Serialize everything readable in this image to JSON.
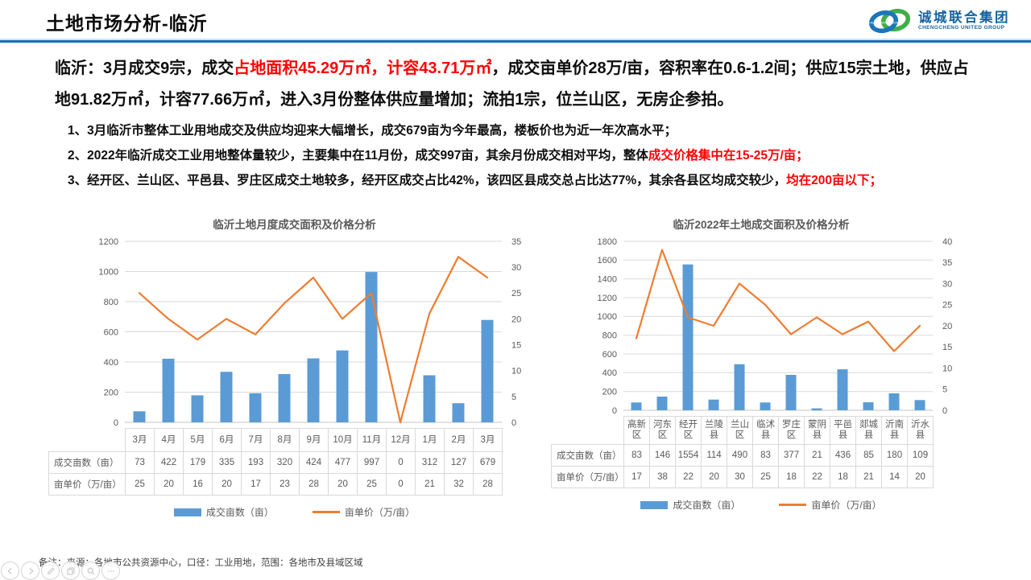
{
  "header": {
    "title": "土地市场分析-临沂",
    "logo": {
      "cn": "诚城联合集团",
      "en": "CHENGCHENG UNITED GROUP",
      "ring_text": "CHENGCHENG UNION"
    }
  },
  "colors": {
    "accent_blue": "#1472B8",
    "bar_blue": "#5B9BD5",
    "line_orange": "#ED7D31",
    "highlight_red": "#FF0000"
  },
  "summary": {
    "segments": [
      {
        "text": "临沂：3月成交9宗，成交",
        "red": false
      },
      {
        "text": "占地面积45.29万㎡，计容43.71万㎡",
        "red": true
      },
      {
        "text": "，成交亩单价28万/亩，容积率在0.6-1.2间；供应15宗土地，供应占地91.82万㎡，计容77.66万㎡，进入3月份整体供应量增加；流拍1宗，位兰山区，无房企参拍。",
        "red": false
      }
    ]
  },
  "points": [
    {
      "segments": [
        {
          "text": "1、3月临沂市整体工业用地成交及供应均迎来大幅增长，成交679亩为今年最高，楼板价也为近一年次高水平；",
          "red": false
        }
      ]
    },
    {
      "segments": [
        {
          "text": "2、2022年临沂成交工业用地整体量较少，主要集中在11月份，成交997亩，其余月份成交相对平均，整体",
          "red": false
        },
        {
          "text": "成交价格集中在15-25万/亩；",
          "red": true
        }
      ]
    },
    {
      "segments": [
        {
          "text": "3、经开区、兰山区、平邑县、罗庄区成交土地较多，经开区成交占比42%，该四区县成交总占比达77%，其余各县区均成交较少，",
          "red": false
        },
        {
          "text": "均在200亩以下；",
          "red": true
        }
      ]
    }
  ],
  "chart_data": [
    {
      "type": "bar+line",
      "title": "临沂土地月度成交面积及价格分析",
      "categories": [
        "3月",
        "4月",
        "5月",
        "6月",
        "7月",
        "8月",
        "9月",
        "10月",
        "11月",
        "12月",
        "1月",
        "2月",
        "3月"
      ],
      "series": [
        {
          "name": "成交亩数（亩）",
          "type": "bar",
          "axis": "left",
          "color": "#5B9BD5",
          "values": [
            73,
            422,
            179,
            335,
            193,
            320,
            424,
            477,
            997,
            0,
            312,
            127,
            679
          ]
        },
        {
          "name": "亩单价（万/亩）",
          "type": "line",
          "axis": "right",
          "color": "#ED7D31",
          "values": [
            25,
            20,
            16,
            20,
            17,
            23,
            28,
            20,
            25,
            0,
            21,
            32,
            28
          ]
        }
      ],
      "left_axis": {
        "min": 0,
        "max": 1200,
        "step": 200
      },
      "right_axis": {
        "min": 0,
        "max": 35,
        "step": 5
      },
      "grid": true,
      "legend_position": "bottom",
      "data_table": true
    },
    {
      "type": "bar+line",
      "title": "临沂2022年土地成交面积及价格分析",
      "categories": [
        "高新区",
        "河东区",
        "经开区",
        "兰陵县",
        "兰山区",
        "临沭县",
        "罗庄区",
        "蒙阴县",
        "平邑县",
        "郯城县",
        "沂南县",
        "沂水县"
      ],
      "series": [
        {
          "name": "成交亩数（亩）",
          "type": "bar",
          "axis": "left",
          "color": "#5B9BD5",
          "values": [
            83,
            146,
            1554,
            114,
            490,
            83,
            377,
            21,
            436,
            85,
            180,
            109
          ]
        },
        {
          "name": "亩单价（万/亩）",
          "type": "line",
          "axis": "right",
          "color": "#ED7D31",
          "values": [
            17,
            38,
            22,
            20,
            30,
            25,
            18,
            22,
            18,
            21,
            14,
            20
          ]
        }
      ],
      "left_axis": {
        "min": 0,
        "max": 1800,
        "step": 200
      },
      "right_axis": {
        "min": 0,
        "max": 40,
        "step": 5
      },
      "grid": true,
      "legend_position": "bottom",
      "data_table": true
    }
  ],
  "footer": {
    "note": "备注：来源：各地市公共资源中心，口径：工业用地，范围：各地市及县域区域"
  },
  "controls": [
    {
      "name": "previous-slide-button",
      "icon": "arrow-left-icon"
    },
    {
      "name": "next-slide-button",
      "icon": "arrow-right-icon"
    },
    {
      "name": "pen-tool-button",
      "icon": "pen-icon"
    },
    {
      "name": "slides-overview-button",
      "icon": "slides-icon"
    },
    {
      "name": "zoom-button",
      "icon": "magnifier-icon"
    },
    {
      "name": "more-options-button",
      "icon": "more-icon"
    }
  ]
}
